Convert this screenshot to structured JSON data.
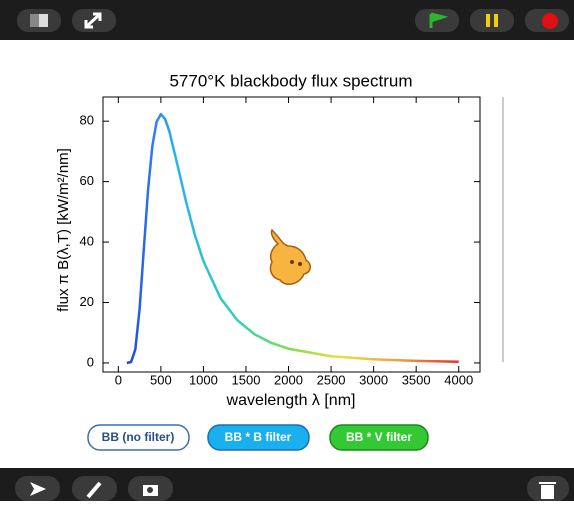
{
  "chart_data": {
    "type": "line",
    "title": "5770°K blackbody flux spectrum",
    "xlabel": "wavelength λ  [nm]",
    "ylabel": "flux  π B(λ,T)  [kW/m²/nm]",
    "x": [
      100,
      150,
      200,
      250,
      300,
      350,
      400,
      450,
      500,
      550,
      600,
      700,
      800,
      900,
      1000,
      1200,
      1400,
      1600,
      1800,
      2000,
      2500,
      3000,
      3500,
      4000
    ],
    "values": [
      0,
      0.3,
      4.5,
      17.8,
      37.8,
      57.4,
      71.8,
      79.8,
      82.3,
      80.7,
      76.6,
      64.9,
      52.9,
      42.3,
      33.7,
      21.5,
      14.1,
      9.5,
      6.6,
      4.7,
      2.2,
      1.2,
      0.7,
      0.4
    ],
    "xlim": [
      -180,
      4250
    ],
    "ylim": [
      -3,
      88
    ],
    "xticks": [
      0,
      500,
      1000,
      1500,
      2000,
      2500,
      3000,
      3500,
      4000
    ],
    "yticks": [
      0,
      20,
      40,
      60,
      80
    ],
    "grid": false
  },
  "buttons": [
    "BB (no filter)",
    "BB * B filter",
    "BB * V filter"
  ]
}
